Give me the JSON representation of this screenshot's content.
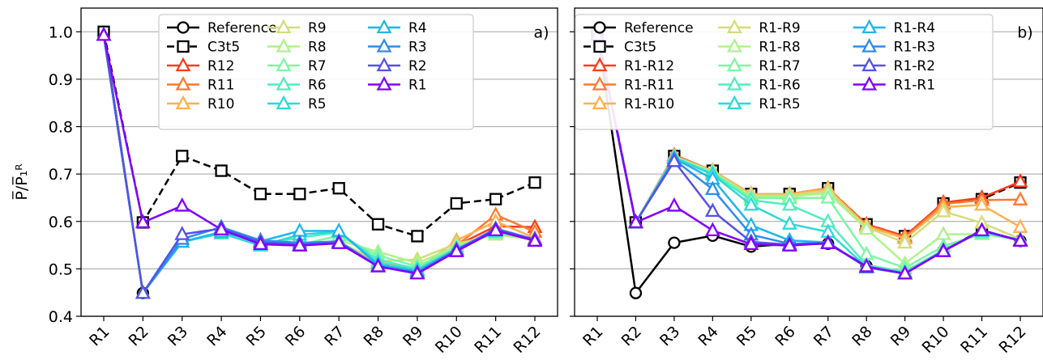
{
  "chart_data": [
    {
      "type": "line",
      "panel_tag": "a)",
      "ylabel": "P̅/P̅₁ᴿ",
      "categories": [
        "R1",
        "R2",
        "R3",
        "R4",
        "R5",
        "R6",
        "R7",
        "R8",
        "R9",
        "R10",
        "R11",
        "R12"
      ],
      "yticks": [
        "0.4",
        "0.5",
        "0.6",
        "0.7",
        "0.8",
        "0.9",
        "1.0"
      ],
      "ylim": [
        0.4,
        1.05
      ],
      "grid": "horizontal",
      "legend_position": "top-center",
      "series": [
        {
          "name": "Reference",
          "color": "#000000",
          "marker": "circle",
          "dash": false,
          "values": [
            1.0,
            0.449,
            null,
            null,
            null,
            null,
            null,
            null,
            null,
            null,
            null,
            null
          ]
        },
        {
          "name": "C3t5",
          "color": "#000000",
          "marker": "square",
          "dash": true,
          "values": [
            1.0,
            0.598,
            0.738,
            0.707,
            0.658,
            0.658,
            0.67,
            0.594,
            0.569,
            0.638,
            0.647,
            0.682
          ]
        },
        {
          "name": "R12",
          "color": "#ff3b1f",
          "marker": "triangle",
          "dash": false,
          "values": [
            0.993,
            0.449,
            0.557,
            0.575,
            0.552,
            0.549,
            0.557,
            0.512,
            0.495,
            0.549,
            0.59,
            0.588
          ]
        },
        {
          "name": "R11",
          "color": "#ff7a2e",
          "marker": "triangle",
          "dash": false,
          "values": [
            0.993,
            0.449,
            0.557,
            0.575,
            0.552,
            0.549,
            0.557,
            0.512,
            0.495,
            0.549,
            0.614,
            0.578
          ]
        },
        {
          "name": "R10",
          "color": "#ffb050",
          "marker": "triangle",
          "dash": false,
          "values": [
            0.993,
            0.449,
            0.557,
            0.575,
            0.552,
            0.549,
            0.557,
            0.514,
            0.498,
            0.56,
            0.6,
            0.565
          ]
        },
        {
          "name": "R9",
          "color": "#d4dc7a",
          "marker": "triangle",
          "dash": false,
          "values": [
            0.993,
            0.449,
            0.557,
            0.575,
            0.552,
            0.549,
            0.557,
            0.516,
            0.52,
            0.553,
            0.572,
            0.562
          ]
        },
        {
          "name": "R8",
          "color": "#aef28d",
          "marker": "triangle",
          "dash": false,
          "values": [
            0.993,
            0.449,
            0.557,
            0.575,
            0.552,
            0.549,
            0.56,
            0.536,
            0.512,
            0.548,
            0.574,
            0.562
          ]
        },
        {
          "name": "R7",
          "color": "#7bf7a4",
          "marker": "triangle",
          "dash": false,
          "values": [
            0.993,
            0.449,
            0.557,
            0.575,
            0.552,
            0.551,
            0.57,
            0.528,
            0.505,
            0.545,
            0.576,
            0.562
          ]
        },
        {
          "name": "R6",
          "color": "#50ecbf",
          "marker": "triangle",
          "dash": false,
          "values": [
            0.993,
            0.449,
            0.557,
            0.575,
            0.55,
            0.566,
            0.577,
            0.519,
            0.5,
            0.543,
            0.578,
            0.562
          ]
        },
        {
          "name": "R5",
          "color": "#2ed8d8",
          "marker": "triangle",
          "dash": false,
          "values": [
            0.993,
            0.449,
            0.557,
            0.575,
            0.549,
            0.572,
            0.579,
            0.512,
            0.497,
            0.542,
            0.58,
            0.562
          ]
        },
        {
          "name": "R4",
          "color": "#1fb6ec",
          "marker": "triangle",
          "dash": false,
          "values": [
            0.993,
            0.449,
            0.557,
            0.578,
            0.558,
            0.58,
            0.58,
            0.508,
            0.495,
            0.541,
            0.583,
            0.562
          ]
        },
        {
          "name": "R3",
          "color": "#2e8bef",
          "marker": "triangle",
          "dash": false,
          "values": [
            0.993,
            0.449,
            0.563,
            0.588,
            0.56,
            0.555,
            0.558,
            0.506,
            0.492,
            0.54,
            0.585,
            0.562
          ]
        },
        {
          "name": "R2",
          "color": "#5552e6",
          "marker": "triangle",
          "dash": false,
          "values": [
            0.993,
            0.449,
            0.573,
            0.585,
            0.556,
            0.551,
            0.556,
            0.505,
            0.491,
            0.539,
            0.584,
            0.562
          ]
        },
        {
          "name": "R1",
          "color": "#8000ff",
          "marker": "triangle",
          "dash": false,
          "values": [
            0.993,
            0.598,
            0.633,
            0.583,
            0.552,
            0.549,
            0.554,
            0.505,
            0.49,
            0.537,
            0.581,
            0.559
          ]
        }
      ]
    },
    {
      "type": "line",
      "panel_tag": "b)",
      "categories": [
        "R1",
        "R2",
        "R3",
        "R4",
        "R5",
        "R6",
        "R7",
        "R8",
        "R9",
        "R10",
        "R11",
        "R12"
      ],
      "ylim": [
        0.4,
        1.05
      ],
      "grid": "horizontal",
      "legend_position": "top-center",
      "series": [
        {
          "name": "Reference",
          "color": "#000000",
          "marker": "circle",
          "dash": false,
          "values": [
            1.0,
            0.449,
            0.555,
            0.57,
            0.547,
            0.553,
            0.553,
            0.506,
            0.491,
            0.539,
            0.582,
            0.559
          ]
        },
        {
          "name": "C3t5",
          "color": "#000000",
          "marker": "square",
          "dash": true,
          "values": [
            1.0,
            0.598,
            0.738,
            0.707,
            0.658,
            0.658,
            0.67,
            0.594,
            0.569,
            0.638,
            0.647,
            0.682
          ]
        },
        {
          "name": "R1-R12",
          "color": "#ff3b1f",
          "marker": "triangle",
          "dash": false,
          "values": [
            0.993,
            0.598,
            0.74,
            0.707,
            0.658,
            0.658,
            0.67,
            0.594,
            0.569,
            0.64,
            0.65,
            0.684
          ]
        },
        {
          "name": "R1-R11",
          "color": "#ff7a2e",
          "marker": "triangle",
          "dash": false,
          "values": [
            0.993,
            0.598,
            0.738,
            0.707,
            0.658,
            0.658,
            0.67,
            0.592,
            0.566,
            0.637,
            0.645,
            0.646
          ]
        },
        {
          "name": "R1-R10",
          "color": "#ffb050",
          "marker": "triangle",
          "dash": false,
          "values": [
            0.993,
            0.598,
            0.738,
            0.707,
            0.658,
            0.658,
            0.669,
            0.59,
            0.564,
            0.63,
            0.635,
            0.588
          ]
        },
        {
          "name": "R1-R9",
          "color": "#d4dc7a",
          "marker": "triangle",
          "dash": false,
          "values": [
            0.993,
            0.598,
            0.737,
            0.705,
            0.655,
            0.655,
            0.665,
            0.588,
            0.555,
            0.621,
            0.597,
            0.563
          ]
        },
        {
          "name": "R1-R8",
          "color": "#aef28d",
          "marker": "triangle",
          "dash": false,
          "values": [
            0.993,
            0.598,
            0.737,
            0.704,
            0.652,
            0.652,
            0.66,
            0.584,
            0.511,
            0.573,
            0.573,
            0.562
          ]
        },
        {
          "name": "R1-R7",
          "color": "#7bf7a4",
          "marker": "triangle",
          "dash": false,
          "values": [
            0.993,
            0.598,
            0.736,
            0.703,
            0.65,
            0.649,
            0.65,
            0.531,
            0.502,
            0.548,
            0.574,
            0.561
          ]
        },
        {
          "name": "R1-R6",
          "color": "#50ecbf",
          "marker": "triangle",
          "dash": false,
          "values": [
            0.993,
            0.598,
            0.735,
            0.701,
            0.645,
            0.635,
            0.6,
            0.508,
            0.494,
            0.54,
            0.578,
            0.561
          ]
        },
        {
          "name": "R1-R5",
          "color": "#2ed8d8",
          "marker": "triangle",
          "dash": false,
          "values": [
            0.993,
            0.598,
            0.734,
            0.699,
            0.635,
            0.595,
            0.578,
            0.504,
            0.491,
            0.538,
            0.58,
            0.56
          ]
        },
        {
          "name": "R1-R4",
          "color": "#1fb6ec",
          "marker": "triangle",
          "dash": false,
          "values": [
            0.993,
            0.598,
            0.733,
            0.69,
            0.592,
            0.56,
            0.556,
            0.503,
            0.49,
            0.538,
            0.581,
            0.56
          ]
        },
        {
          "name": "R1-R3",
          "color": "#2e8bef",
          "marker": "triangle",
          "dash": false,
          "values": [
            0.993,
            0.598,
            0.73,
            0.668,
            0.572,
            0.553,
            0.555,
            0.503,
            0.49,
            0.538,
            0.581,
            0.56
          ]
        },
        {
          "name": "R1-R2",
          "color": "#5552e6",
          "marker": "triangle",
          "dash": false,
          "values": [
            0.993,
            0.598,
            0.727,
            0.622,
            0.557,
            0.551,
            0.554,
            0.504,
            0.49,
            0.538,
            0.581,
            0.56
          ]
        },
        {
          "name": "R1-R1",
          "color": "#8000ff",
          "marker": "triangle",
          "dash": false,
          "values": [
            0.993,
            0.598,
            0.633,
            0.581,
            0.552,
            0.549,
            0.554,
            0.505,
            0.49,
            0.537,
            0.581,
            0.559
          ]
        }
      ]
    }
  ]
}
